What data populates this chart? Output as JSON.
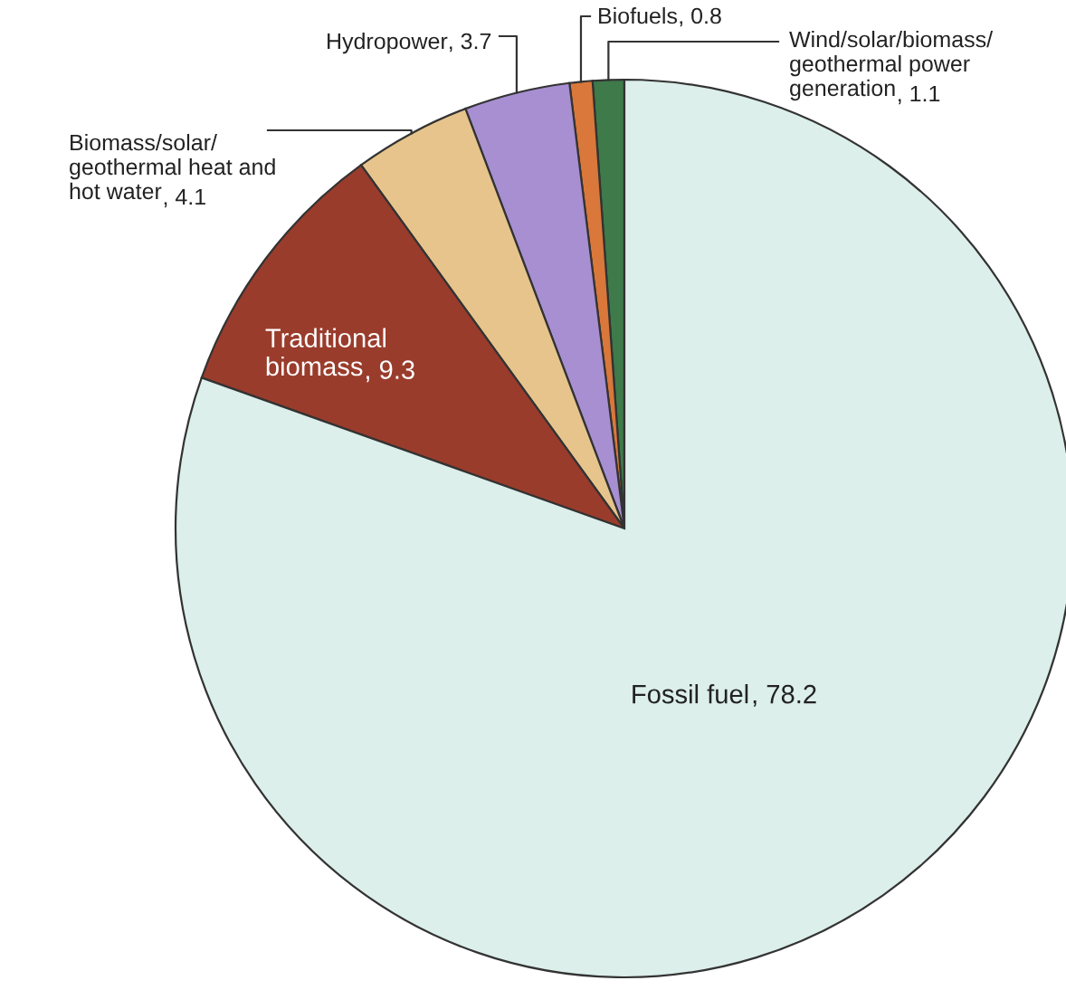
{
  "chart_data": {
    "type": "pie",
    "categories": [
      "Wind/solar/biomass/\ngeothermal power\ngeneration",
      "Biofuels",
      "Hydropower",
      "Biomass/solar/\ngeothermal heat and\nhot water",
      "Traditional\nbiomass",
      "Fossil fuel"
    ],
    "values": [
      1.1,
      0.8,
      3.7,
      4.1,
      9.3,
      78.2
    ],
    "colors": [
      "#3f7a4a",
      "#d9783a",
      "#a78fd2",
      "#e6c48c",
      "#9a3c2c",
      "#dcefea"
    ],
    "value_labels": [
      ", 1.1",
      ", 0.8",
      ", 3.7",
      ", 4.1",
      ", 9.3",
      ", 78.2"
    ]
  }
}
